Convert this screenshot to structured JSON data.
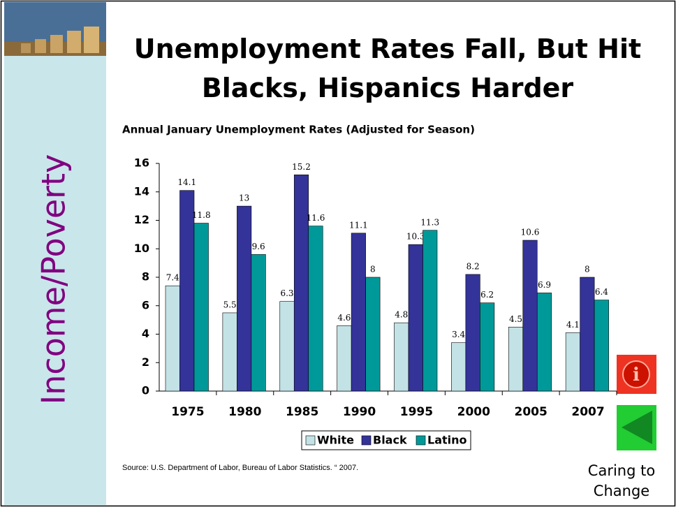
{
  "title": "Unemployment Rates Fall, But Hit Blacks, Hispanics Harder",
  "sidebar_label": "Income/Poverty",
  "source": "Source: U.S. Department of Labor, Bureau of Labor Statistics. “ 2007.",
  "footer": "Caring to Change",
  "chart_data": {
    "type": "bar",
    "title": "Annual January Unemployment Rates (Adjusted for Season)",
    "categories": [
      "1975",
      "1980",
      "1985",
      "1990",
      "1995",
      "2000",
      "2005",
      "2007"
    ],
    "series": [
      {
        "name": "White",
        "color": "#c3e2e6",
        "values": [
          7.4,
          5.5,
          6.3,
          4.6,
          4.8,
          3.4,
          4.5,
          4.1
        ]
      },
      {
        "name": "Black",
        "color": "#333399",
        "values": [
          14.1,
          13,
          15.2,
          11.1,
          10.3,
          8.2,
          10.6,
          8
        ]
      },
      {
        "name": "Latino",
        "color": "#009999",
        "values": [
          11.8,
          9.6,
          11.6,
          8,
          11.3,
          6.2,
          6.9,
          6.4
        ]
      }
    ],
    "ylim": [
      0,
      16
    ],
    "yticks": [
      0,
      2,
      4,
      6,
      8,
      10,
      12,
      14,
      16
    ],
    "grid": false,
    "legend": "bottom"
  }
}
